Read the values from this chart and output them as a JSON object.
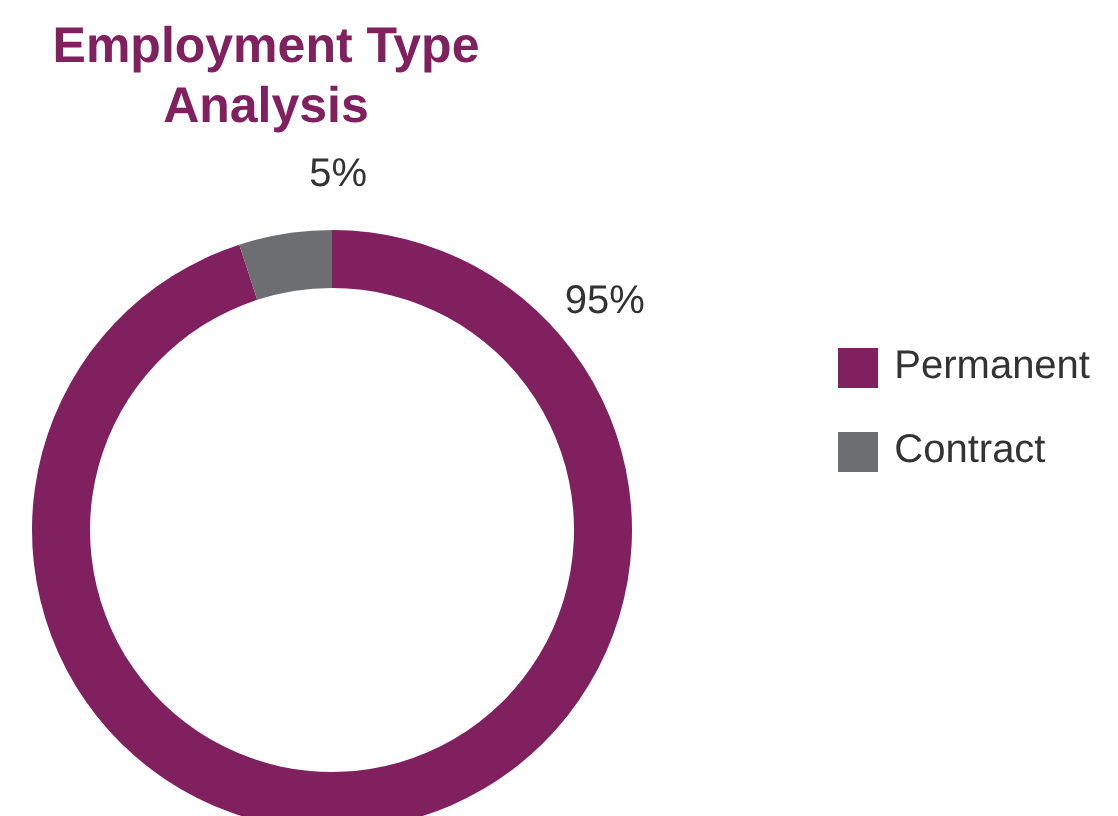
{
  "chart_data": {
    "type": "donut",
    "title": "Employment Type Analysis",
    "categories": [
      "Permanent",
      "Contract"
    ],
    "values": [
      95,
      5
    ],
    "colors": [
      "#80205f",
      "#6d6e71"
    ],
    "value_labels": [
      "95%",
      "5%"
    ],
    "legend": "right"
  }
}
